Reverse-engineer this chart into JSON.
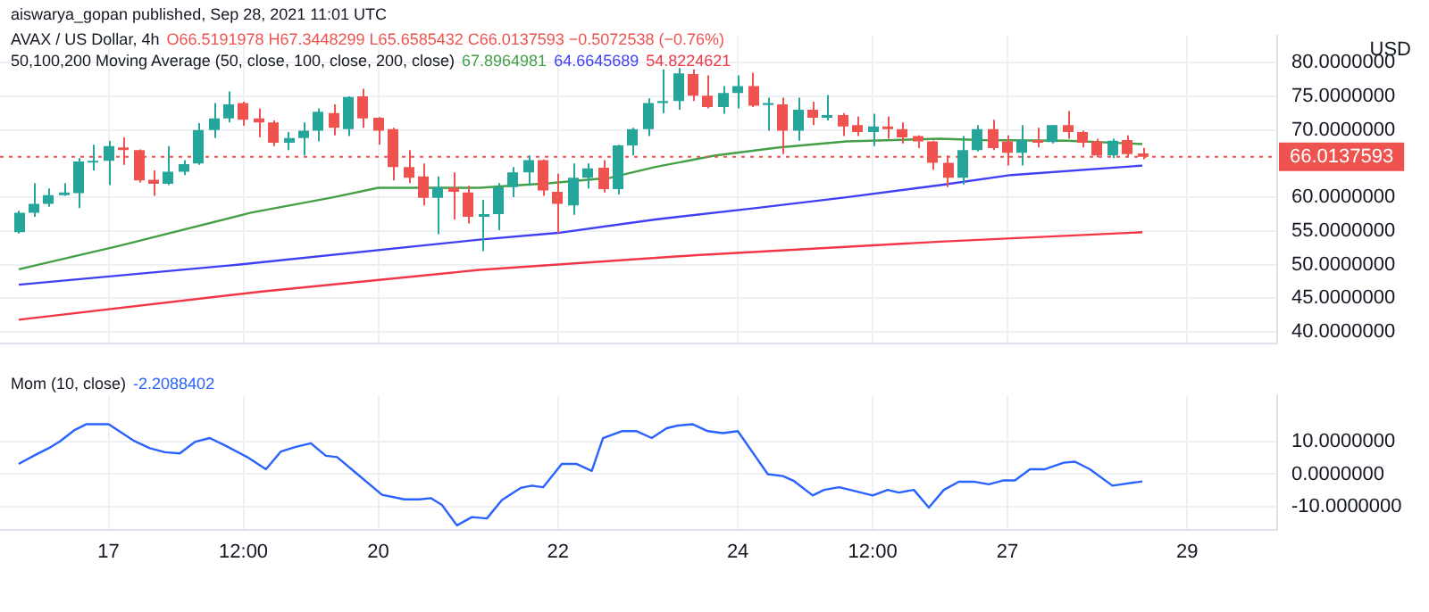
{
  "chart_data": [
    {
      "type": "candlestick",
      "title": "AVAX / US Dollar, 4h",
      "annotations": [
        "aiswarya_gopan published, Sep 28, 2021 11:01 UTC",
        "O66.5191978 H67.3448299 L65.6585432 C66.0137593 −0.5072538 (−0.76%)"
      ],
      "ylabel": "USD",
      "legend_title": "50,100,200 Moving Average (50, close, 100, close, 200, close)",
      "legend": "top",
      "grid": true,
      "tick_labels": "y",
      "xlim": [
        "2021-09-15T19:00",
        "2021-09-30T00:00"
      ],
      "xticks": [
        {
          "value": "2021-09-17",
          "label": null
        },
        {
          "value": "2021-09-18T12:00",
          "label": null
        },
        {
          "value": "2021-09-20",
          "label": null
        },
        {
          "value": "2021-09-22",
          "label": null
        },
        {
          "value": "2021-09-24",
          "label": null
        },
        {
          "value": "2021-09-25T12:00",
          "label": null
        },
        {
          "value": "2021-09-27",
          "label": null
        },
        {
          "value": "2021-09-29",
          "label": null
        }
      ],
      "ylim": [
        38.3,
        84
      ],
      "yticks": [
        {
          "value": 40,
          "label": "40.0000000"
        },
        {
          "value": 45,
          "label": "45.0000000"
        },
        {
          "value": 50,
          "label": "50.0000000"
        },
        {
          "value": 55,
          "label": "55.0000000"
        },
        {
          "value": 60,
          "label": "60.0000000"
        },
        {
          "value": 70,
          "label": "70.0000000"
        },
        {
          "value": 75,
          "label": "75.0000000"
        },
        {
          "value": 80,
          "label": "80.0000000"
        }
      ],
      "ref_lines": [
        {
          "axis": "y",
          "value": 66.0137593,
          "label": "66.0137593",
          "color": "#ef5350",
          "line_style": "dotted"
        }
      ],
      "x": [
        "2021-09-16T00:00",
        "2021-09-16T04:00",
        "2021-09-16T08:00",
        "2021-09-16T12:00",
        "2021-09-16T16:00",
        "2021-09-16T20:00",
        "2021-09-17T00:00",
        "2021-09-17T04:00",
        "2021-09-17T08:00",
        "2021-09-17T12:00",
        "2021-09-17T16:00",
        "2021-09-17T20:00",
        "2021-09-18T00:00",
        "2021-09-18T04:00",
        "2021-09-18T08:00",
        "2021-09-18T12:00",
        "2021-09-18T16:00",
        "2021-09-18T20:00",
        "2021-09-19T00:00",
        "2021-09-19T04:00",
        "2021-09-19T08:00",
        "2021-09-19T12:00",
        "2021-09-19T16:00",
        "2021-09-19T20:00",
        "2021-09-20T00:00",
        "2021-09-20T04:00",
        "2021-09-20T08:00",
        "2021-09-20T12:00",
        "2021-09-20T16:00",
        "2021-09-20T20:00",
        "2021-09-21T00:00",
        "2021-09-21T04:00",
        "2021-09-21T08:00",
        "2021-09-21T12:00",
        "2021-09-21T16:00",
        "2021-09-21T20:00",
        "2021-09-22T00:00",
        "2021-09-22T04:00",
        "2021-09-22T08:00",
        "2021-09-22T12:00",
        "2021-09-22T16:00",
        "2021-09-22T20:00",
        "2021-09-23T00:00",
        "2021-09-23T04:00",
        "2021-09-23T08:00",
        "2021-09-23T12:00",
        "2021-09-23T16:00",
        "2021-09-23T20:00",
        "2021-09-24T00:00",
        "2021-09-24T04:00",
        "2021-09-24T08:00",
        "2021-09-24T12:00",
        "2021-09-24T16:00",
        "2021-09-24T20:00",
        "2021-09-25T00:00",
        "2021-09-25T04:00",
        "2021-09-25T08:00",
        "2021-09-25T12:00",
        "2021-09-25T16:00",
        "2021-09-25T20:00",
        "2021-09-26T00:00",
        "2021-09-26T04:00",
        "2021-09-26T08:00",
        "2021-09-26T12:00",
        "2021-09-26T16:00",
        "2021-09-26T20:00",
        "2021-09-27T00:00",
        "2021-09-27T04:00",
        "2021-09-27T08:00",
        "2021-09-27T12:00",
        "2021-09-27T16:00",
        "2021-09-27T20:00",
        "2021-09-28T00:00",
        "2021-09-28T04:00",
        "2021-09-28T08:00",
        "2021-09-28T12:00"
      ],
      "ohlc": [
        [
          54.8,
          58.0,
          54.6,
          57.7
        ],
        [
          57.7,
          62.1,
          57.1,
          59.0
        ],
        [
          59.0,
          61.3,
          58.6,
          60.3
        ],
        [
          60.3,
          62.1,
          60.2,
          60.7
        ],
        [
          60.6,
          65.8,
          58.4,
          65.3
        ],
        [
          65.2,
          67.8,
          64.0,
          65.4
        ],
        [
          65.4,
          68.4,
          61.8,
          67.6
        ],
        [
          67.4,
          68.9,
          64.8,
          67.0
        ],
        [
          67.0,
          67.1,
          62.2,
          62.5
        ],
        [
          62.6,
          64.0,
          60.2,
          62.0
        ],
        [
          62.0,
          67.6,
          61.8,
          63.8
        ],
        [
          63.8,
          65.5,
          63.3,
          64.9
        ],
        [
          65.0,
          71.0,
          64.8,
          70.0
        ],
        [
          70.0,
          74.0,
          68.8,
          71.7
        ],
        [
          71.7,
          75.7,
          71.1,
          73.8
        ],
        [
          74.0,
          74.2,
          70.6,
          71.5
        ],
        [
          71.7,
          73.2,
          68.9,
          71.1
        ],
        [
          71.1,
          71.4,
          67.6,
          68.1
        ],
        [
          68.1,
          69.7,
          67.0,
          68.8
        ],
        [
          68.8,
          71.1,
          66.2,
          69.9
        ],
        [
          69.9,
          73.2,
          68.3,
          72.7
        ],
        [
          72.5,
          73.8,
          69.2,
          70.3
        ],
        [
          70.1,
          75.0,
          69.1,
          74.9
        ],
        [
          75.0,
          76.1,
          70.3,
          71.7
        ],
        [
          71.8,
          71.9,
          67.8,
          69.9
        ],
        [
          70.1,
          70.3,
          62.5,
          64.5
        ],
        [
          64.5,
          67.0,
          62.1,
          62.9
        ],
        [
          63.1,
          65.0,
          58.8,
          59.9
        ],
        [
          59.9,
          63.1,
          54.5,
          61.5
        ],
        [
          61.4,
          63.7,
          56.7,
          60.8
        ],
        [
          60.7,
          61.7,
          56.1,
          57.1
        ],
        [
          57.1,
          59.6,
          52.0,
          57.5
        ],
        [
          57.5,
          62.1,
          55.1,
          61.5
        ],
        [
          61.5,
          64.5,
          60.0,
          63.7
        ],
        [
          63.7,
          66.2,
          61.7,
          65.5
        ],
        [
          65.5,
          65.6,
          60.2,
          61.0
        ],
        [
          60.8,
          63.5,
          54.7,
          59.0
        ],
        [
          58.8,
          65.0,
          57.4,
          62.9
        ],
        [
          62.9,
          65.0,
          61.3,
          64.3
        ],
        [
          64.4,
          65.5,
          60.7,
          61.2
        ],
        [
          61.2,
          67.8,
          60.4,
          67.7
        ],
        [
          67.7,
          70.3,
          66.2,
          70.1
        ],
        [
          70.1,
          74.7,
          69.1,
          74.0
        ],
        [
          74.0,
          79.0,
          72.5,
          74.3
        ],
        [
          74.3,
          79.2,
          73.0,
          78.4
        ],
        [
          78.3,
          79.0,
          74.3,
          75.1
        ],
        [
          75.1,
          78.1,
          73.2,
          73.4
        ],
        [
          73.4,
          76.5,
          72.4,
          75.5
        ],
        [
          75.5,
          78.1,
          73.2,
          76.5
        ],
        [
          76.5,
          78.5,
          73.4,
          73.6
        ],
        [
          73.7,
          74.8,
          69.9,
          74.0
        ],
        [
          73.8,
          74.8,
          66.4,
          69.9
        ],
        [
          69.9,
          74.8,
          68.4,
          73.0
        ],
        [
          73.0,
          74.2,
          70.7,
          71.8
        ],
        [
          71.8,
          75.2,
          71.4,
          72.2
        ],
        [
          72.2,
          72.5,
          69.1,
          70.5
        ],
        [
          70.7,
          72.0,
          69.1,
          69.7
        ],
        [
          69.7,
          72.4,
          67.6,
          70.5
        ],
        [
          70.5,
          72.0,
          68.7,
          70.1
        ],
        [
          70.1,
          71.1,
          68.0,
          68.9
        ],
        [
          69.1,
          69.2,
          67.3,
          68.3
        ],
        [
          68.3,
          68.4,
          64.1,
          65.1
        ],
        [
          65.1,
          66.2,
          61.5,
          62.9
        ],
        [
          62.9,
          69.1,
          61.9,
          67.0
        ],
        [
          67.0,
          70.7,
          66.8,
          70.1
        ],
        [
          70.1,
          71.5,
          67.0,
          67.3
        ],
        [
          68.3,
          69.2,
          64.7,
          66.6
        ],
        [
          66.6,
          70.7,
          64.7,
          68.5
        ],
        [
          68.5,
          70.3,
          67.4,
          68.1
        ],
        [
          68.2,
          70.7,
          68.0,
          70.7
        ],
        [
          70.7,
          72.8,
          68.7,
          69.7
        ],
        [
          69.7,
          69.9,
          67.4,
          68.1
        ],
        [
          68.3,
          68.7,
          65.9,
          66.2
        ],
        [
          66.2,
          68.7,
          65.8,
          68.4
        ],
        [
          68.5,
          69.2,
          65.9,
          66.4
        ],
        [
          66.5191978,
          67.3448299,
          65.6585432,
          66.0137593
        ]
      ],
      "colors": [
        "#26a69a",
        "#26a69a",
        "#26a69a",
        "#26a69a",
        "#26a69a",
        "#26a69a",
        "#26a69a",
        "#ef5350",
        "#ef5350",
        "#ef5350",
        "#26a69a",
        "#26a69a",
        "#26a69a",
        "#26a69a",
        "#26a69a",
        "#ef5350",
        "#ef5350",
        "#ef5350",
        "#26a69a",
        "#26a69a",
        "#26a69a",
        "#ef5350",
        "#26a69a",
        "#ef5350",
        "#ef5350",
        "#ef5350",
        "#ef5350",
        "#ef5350",
        "#26a69a",
        "#ef5350",
        "#ef5350",
        "#26a69a",
        "#26a69a",
        "#26a69a",
        "#26a69a",
        "#ef5350",
        "#ef5350",
        "#26a69a",
        "#26a69a",
        "#ef5350",
        "#26a69a",
        "#26a69a",
        "#26a69a",
        "#26a69a",
        "#26a69a",
        "#ef5350",
        "#ef5350",
        "#26a69a",
        "#26a69a",
        "#ef5350",
        "#26a69a",
        "#ef5350",
        "#26a69a",
        "#ef5350",
        "#26a69a",
        "#ef5350",
        "#ef5350",
        "#26a69a",
        "#ef5350",
        "#ef5350",
        "#ef5350",
        "#ef5350",
        "#ef5350",
        "#26a69a",
        "#26a69a",
        "#ef5350",
        "#ef5350",
        "#26a69a",
        "#ef5350",
        "#26a69a",
        "#ef5350",
        "#ef5350",
        "#ef5350",
        "#26a69a",
        "#ef5350",
        "#ef5350"
      ],
      "series": [
        {
          "type": "line",
          "name": "67.8964981",
          "color": "#43a047",
          "x": [
            "2021-09-16T00:00",
            "2021-09-17T03:00",
            "2021-09-18T14:00",
            "2021-09-19T12:00",
            "2021-09-20T00:00",
            "2021-09-21T03:00",
            "2021-09-21T22:00",
            "2021-09-22T14:00",
            "2021-09-23T02:00",
            "2021-09-23T18:00",
            "2021-09-24T11:00",
            "2021-09-25T05:00",
            "2021-09-26T06:00",
            "2021-09-26T17:00",
            "2021-09-27T16:00",
            "2021-09-28T12:00"
          ],
          "values": [
            49.3,
            52.8,
            57.7,
            60.0,
            61.4,
            61.4,
            62.1,
            62.9,
            64.5,
            66.2,
            67.4,
            68.3,
            68.7,
            68.5,
            68.4,
            67.9
          ]
        },
        {
          "type": "line",
          "name": "64.6645689",
          "color": "#3f3ff5",
          "x": [
            "2021-09-16T00:00",
            "2021-09-18T11:00",
            "2021-09-21T03:00",
            "2021-09-22T00:00",
            "2021-09-23T02:00",
            "2021-09-24T05:00",
            "2021-09-25T05:00",
            "2021-09-26T06:00",
            "2021-09-27T01:00",
            "2021-09-28T12:00"
          ],
          "values": [
            47.0,
            50.0,
            53.7,
            54.7,
            56.7,
            58.4,
            60.0,
            61.8,
            63.3,
            64.7
          ]
        },
        {
          "type": "line",
          "name": "54.8224621",
          "color": "#f23645",
          "x": [
            "2021-09-16T00:00",
            "2021-09-18T17:00",
            "2021-09-21T03:00",
            "2021-09-23T13:00",
            "2021-09-26T06:00",
            "2021-09-28T12:00"
          ],
          "values": [
            41.8,
            46.0,
            49.2,
            51.4,
            53.4,
            54.8
          ]
        }
      ]
    },
    {
      "type": "line",
      "legend_title": "Mom (10, close)",
      "legend": "top left",
      "grid": true,
      "xlim": [
        "2021-09-15T19:00",
        "2021-09-30T00:00"
      ],
      "xticks": [
        {
          "value": "2021-09-17",
          "label": "17"
        },
        {
          "value": "2021-09-18T12:00",
          "label": "12:00"
        },
        {
          "value": "2021-09-20",
          "label": "20"
        },
        {
          "value": "2021-09-22",
          "label": "22"
        },
        {
          "value": "2021-09-24",
          "label": "24"
        },
        {
          "value": "2021-09-25T12:00",
          "label": "12:00"
        },
        {
          "value": "2021-09-27",
          "label": "27"
        },
        {
          "value": "2021-09-29",
          "label": "29"
        }
      ],
      "ylim": [
        -17,
        24
      ],
      "yticks": [
        {
          "value": -10,
          "label": "-10.0000000"
        },
        {
          "value": 0,
          "label": "0.0000000"
        },
        {
          "value": 10,
          "label": "10.0000000"
        }
      ],
      "series": [
        {
          "name": "-2.2088402",
          "color": "#2962ff",
          "x": [
            "2021-09-16T00:00",
            "2021-09-16T04:00",
            "2021-09-16T08:00",
            "2021-09-16T11:00",
            "2021-09-16T15:00",
            "2021-09-16T18:00",
            "2021-09-17T00:00",
            "2021-09-17T07:00",
            "2021-09-17T11:00",
            "2021-09-17T15:00",
            "2021-09-17T19:00",
            "2021-09-17T23:00",
            "2021-09-18T03:00",
            "2021-09-18T07:00",
            "2021-09-18T13:00",
            "2021-09-18T18:00",
            "2021-09-18T22:00",
            "2021-09-19T02:00",
            "2021-09-19T06:00",
            "2021-09-19T10:00",
            "2021-09-19T13:00",
            "2021-09-19T18:00",
            "2021-09-20T01:00",
            "2021-09-20T07:00",
            "2021-09-20T11:00",
            "2021-09-20T14:00",
            "2021-09-20T17:00",
            "2021-09-20T21:00",
            "2021-09-21T01:00",
            "2021-09-21T05:00",
            "2021-09-21T09:00",
            "2021-09-21T14:00",
            "2021-09-21T17:00",
            "2021-09-21T20:00",
            "2021-09-22T01:00",
            "2021-09-22T05:00",
            "2021-09-22T09:00",
            "2021-09-22T12:00",
            "2021-09-22T17:00",
            "2021-09-22T21:00",
            "2021-09-23T01:00",
            "2021-09-23T05:00",
            "2021-09-23T08:00",
            "2021-09-23T12:00",
            "2021-09-23T16:00",
            "2021-09-23T20:00",
            "2021-09-24T00:00",
            "2021-09-24T08:00",
            "2021-09-24T12:00",
            "2021-09-24T15:00",
            "2021-09-24T20:00",
            "2021-09-24T23:00",
            "2021-09-25T03:00",
            "2021-09-25T06:00",
            "2021-09-25T12:00",
            "2021-09-25T16:00",
            "2021-09-25T19:00",
            "2021-09-25T23:00",
            "2021-09-26T03:00",
            "2021-09-26T07:00",
            "2021-09-26T11:00",
            "2021-09-26T15:00",
            "2021-09-26T19:00",
            "2021-09-26T23:00",
            "2021-09-27T02:00",
            "2021-09-27T06:00",
            "2021-09-27T10:00",
            "2021-09-27T15:00",
            "2021-09-27T18:00",
            "2021-09-27T22:00",
            "2021-09-28T04:00",
            "2021-09-28T12:00"
          ],
          "values": [
            3.1,
            5.6,
            7.9,
            10.0,
            13.5,
            15.2,
            15.2,
            10.0,
            7.9,
            6.7,
            6.3,
            9.8,
            11.0,
            8.8,
            5.2,
            1.5,
            6.9,
            8.3,
            9.4,
            5.6,
            5.2,
            0.4,
            -6.3,
            -7.7,
            -7.7,
            -7.3,
            -9.4,
            -15.6,
            -13.1,
            -13.5,
            -7.9,
            -4.2,
            -3.5,
            -4.0,
            3.1,
            3.1,
            1.0,
            11.0,
            13.1,
            13.1,
            11.0,
            14.0,
            14.8,
            15.2,
            13.1,
            12.5,
            13.1,
            0.0,
            -0.6,
            -2.1,
            -6.5,
            -4.8,
            -4.0,
            -4.8,
            -6.5,
            -4.8,
            -5.6,
            -4.8,
            -10.2,
            -4.8,
            -2.3,
            -2.3,
            -3.1,
            -1.9,
            -1.9,
            1.5,
            1.5,
            3.5,
            3.8,
            1.5,
            -3.5,
            -2.2
          ]
        }
      ]
    }
  ]
}
